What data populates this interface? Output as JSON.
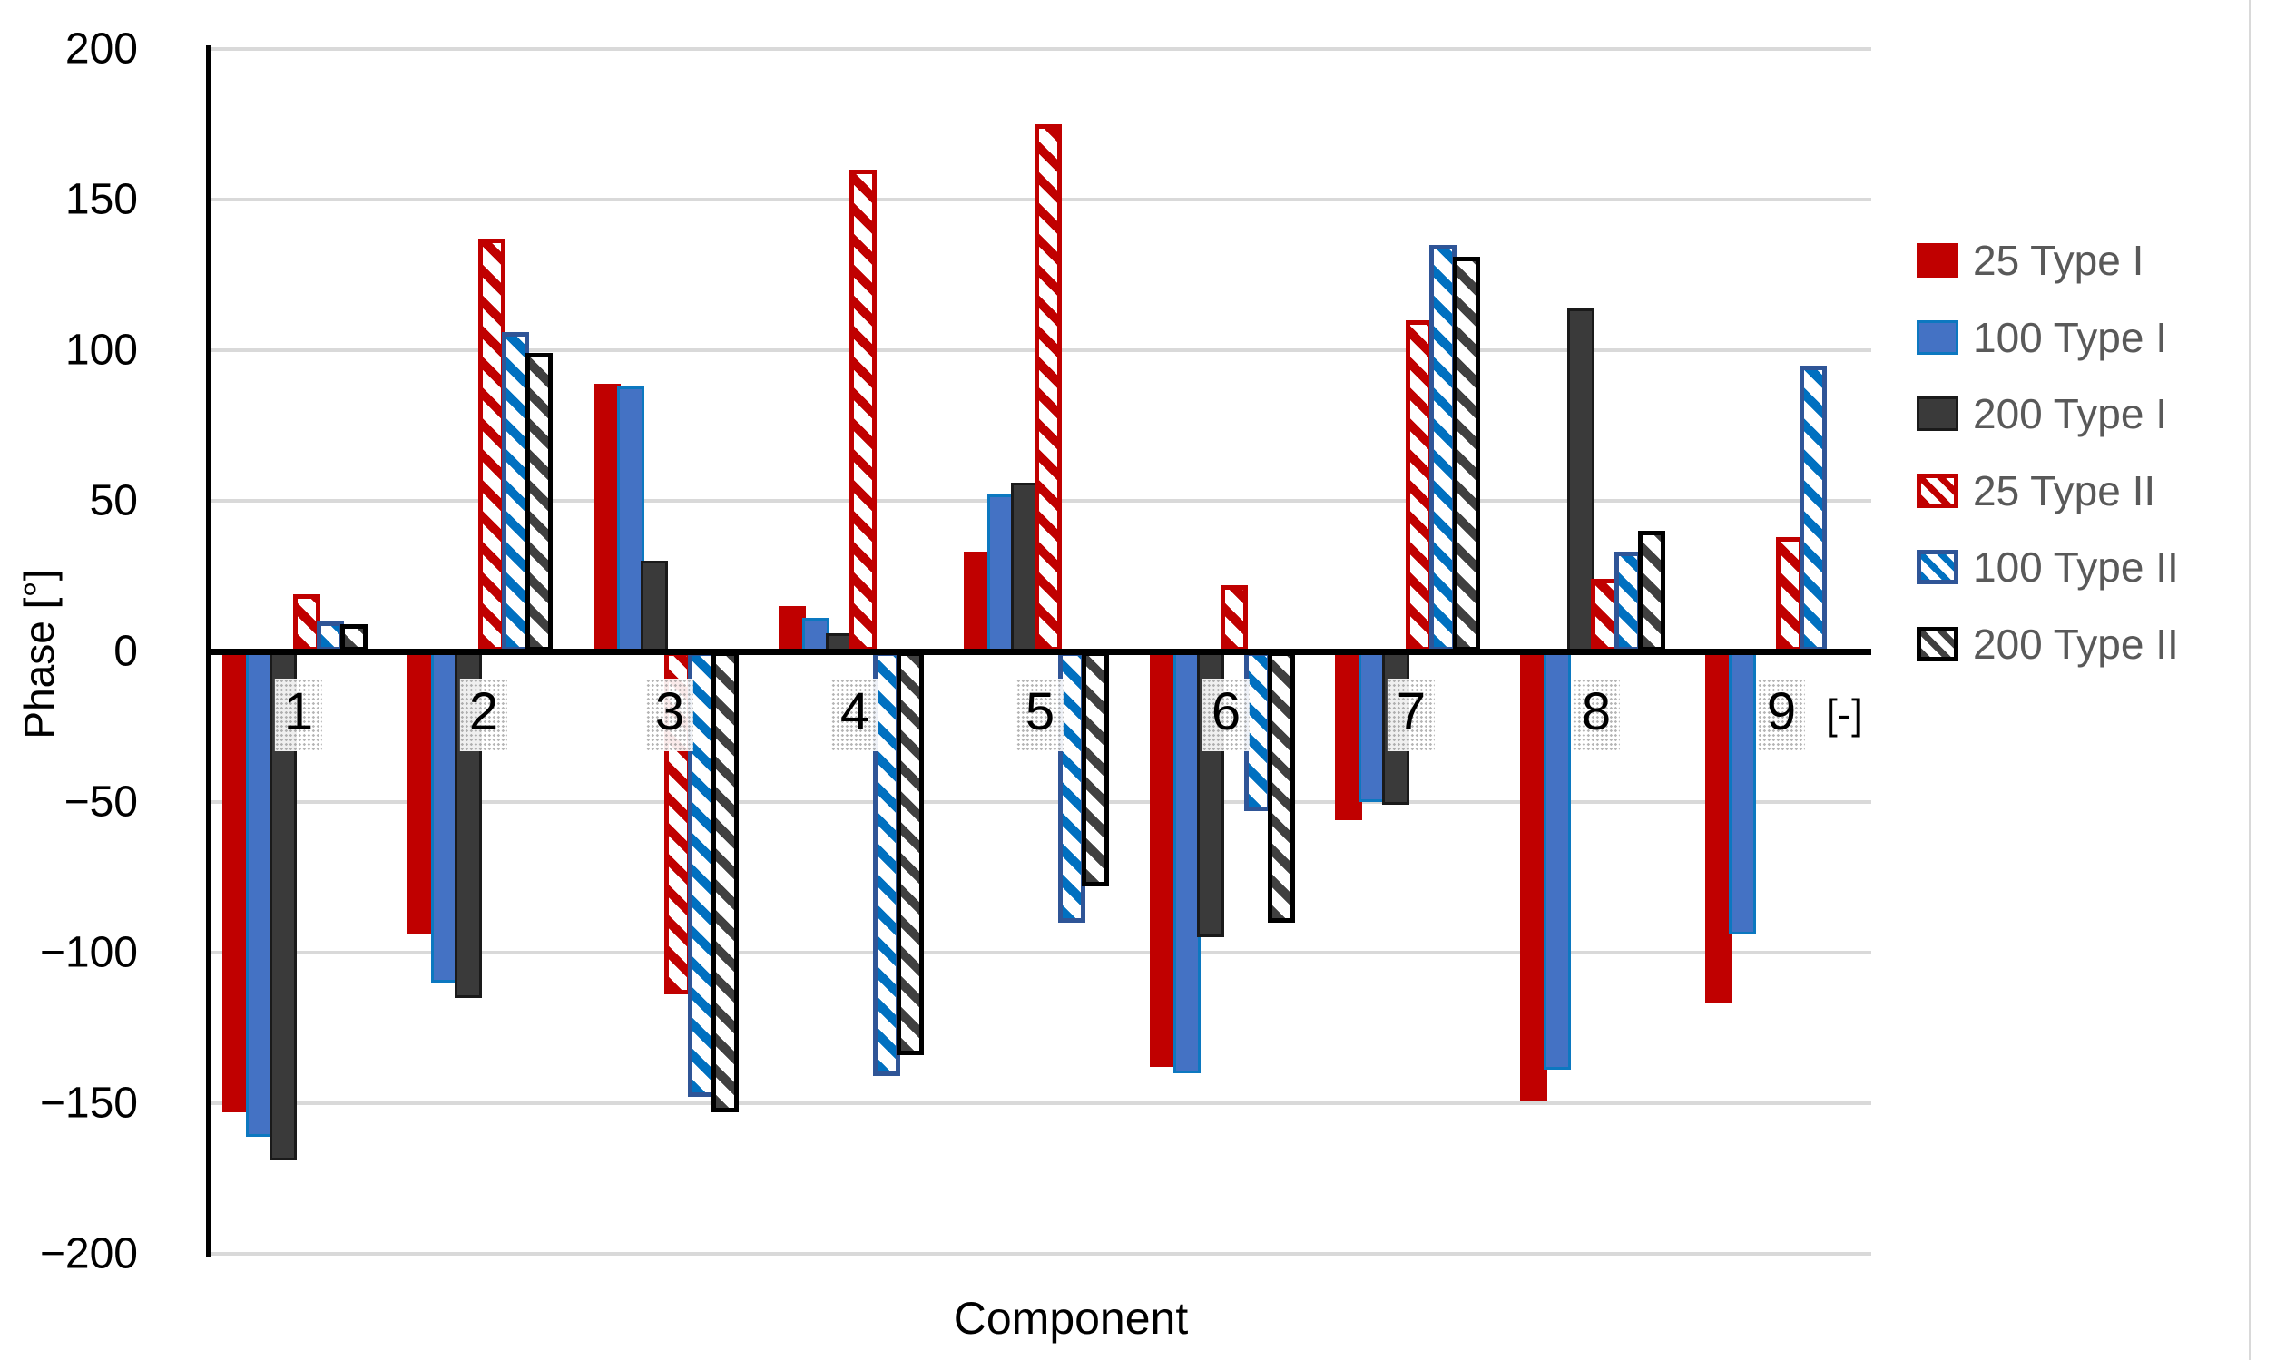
{
  "chart_data": {
    "type": "bar",
    "title": "",
    "xlabel": "Component",
    "ylabel": "Phase [°]",
    "x_unit_label": "[-]",
    "ylim": [
      -200,
      200
    ],
    "grid": true,
    "legend_position": "right",
    "ytick_labels": [
      "200",
      "150",
      "100",
      "50",
      "0",
      "−50",
      "−100",
      "−150",
      "−200"
    ],
    "ytick_values": [
      200,
      150,
      100,
      50,
      0,
      -50,
      -100,
      -150,
      -200
    ],
    "categories": [
      "1",
      "2",
      "3",
      "4",
      "5",
      "6",
      "7",
      "8",
      "9"
    ],
    "series": [
      {
        "name": "25 Type I",
        "pattern": "solid",
        "color": "#c00000",
        "border_color": "#c00000",
        "values": [
          -153,
          -94,
          89,
          15,
          33,
          -138,
          -56,
          -149,
          -117
        ]
      },
      {
        "name": "100 Type I",
        "pattern": "solid",
        "color": "#4472c4",
        "border_color": "#0c78c0",
        "values": [
          -161,
          -110,
          88,
          11,
          52,
          -140,
          -50,
          -139,
          -94
        ]
      },
      {
        "name": "200 Type I",
        "pattern": "solid",
        "color": "#3a3a3a",
        "border_color": "#1a1a1a",
        "values": [
          -169,
          -115,
          30,
          6,
          56,
          -95,
          -51,
          114,
          0
        ]
      },
      {
        "name": "25 Type II",
        "pattern": "hatch",
        "color": "#c00000",
        "border_color": "#c00000",
        "values": [
          19,
          137,
          -114,
          160,
          175,
          22,
          110,
          24,
          38
        ]
      },
      {
        "name": "100 Type II",
        "pattern": "hatch",
        "color": "#0070c0",
        "border_color": "#2f5597",
        "values": [
          10,
          106,
          -148,
          -141,
          -90,
          -53,
          135,
          33,
          95
        ]
      },
      {
        "name": "200 Type II",
        "pattern": "hatch",
        "color": "#404040",
        "border_color": "#000000",
        "values": [
          9,
          99,
          -153,
          -134,
          -78,
          -90,
          131,
          40,
          0
        ]
      }
    ],
    "colors": {
      "gridline": "#d9d9d9",
      "axis": "#000000",
      "legend_text": "#595959",
      "background": "#ffffff"
    }
  }
}
